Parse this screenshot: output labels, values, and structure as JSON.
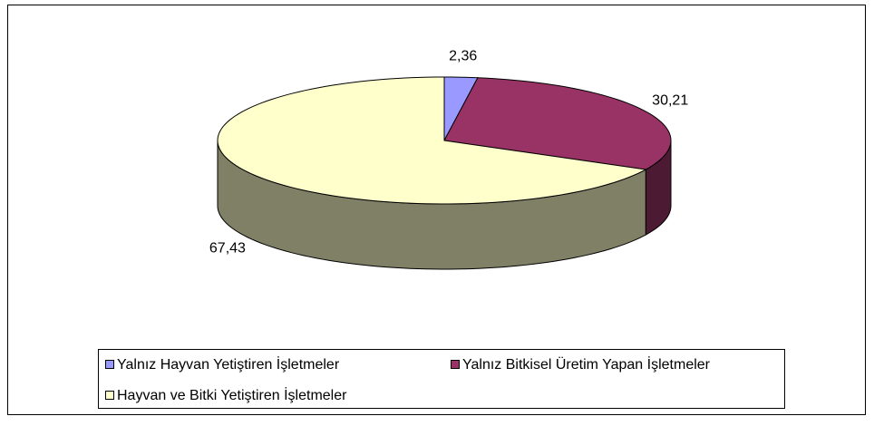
{
  "chart_data": {
    "type": "pie3d",
    "categories": [
      "Yalnız Hayvan Yetiştiren İşletmeler",
      "Yalnız Bitkisel Üretim Yapan İşletmeler",
      "Hayvan ve Bitki Yetiştiren İşletmeler"
    ],
    "values": [
      2.36,
      30.21,
      67.43
    ],
    "value_labels": [
      "2,36",
      "30,21",
      "67,43"
    ],
    "colors": [
      "#9999ff",
      "#993366",
      "#ffffcc"
    ],
    "legend": "bottom"
  }
}
